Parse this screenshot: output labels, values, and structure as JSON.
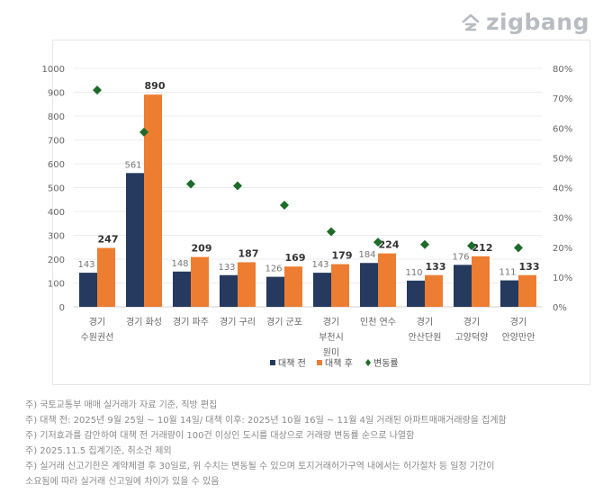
{
  "logo": "zigbang",
  "chart_data": {
    "type": "bar",
    "categories": [
      "경기\n수원권선",
      "경기 화성",
      "경기 파주",
      "경기 구리",
      "경기 군포",
      "경기\n부천시\n원미",
      "인천 연수",
      "경기\n안산단원",
      "경기\n고양덕양",
      "경기\n안양만안"
    ],
    "series": [
      {
        "name": "대책 전",
        "type": "bar",
        "color": "#253a5e",
        "values": [
          143,
          561,
          148,
          133,
          126,
          143,
          184,
          110,
          176,
          111
        ]
      },
      {
        "name": "대책 후",
        "type": "bar",
        "color": "#ed7d31",
        "values": [
          247,
          890,
          209,
          187,
          169,
          179,
          224,
          133,
          212,
          133
        ]
      },
      {
        "name": "변동률",
        "type": "scatter",
        "axis": "right",
        "color": "#1e6b2a",
        "marker": "diamond",
        "values": [
          72.7,
          58.6,
          41.2,
          40.6,
          34.1,
          25.2,
          21.7,
          20.9,
          20.5,
          19.8
        ]
      }
    ],
    "ylim": [
      0,
      1000
    ],
    "yticks": [
      "0",
      "100",
      "200",
      "300",
      "400",
      "500",
      "600",
      "700",
      "800",
      "900",
      "1000"
    ],
    "y2lim": [
      0,
      80
    ],
    "y2ticks": [
      "0%",
      "10%",
      "20%",
      "30%",
      "40%",
      "50%",
      "60%",
      "70%",
      "80%"
    ],
    "grid": true,
    "legend": "bottom"
  },
  "notes": [
    "주) 국토교통부 매매 실거래가 자료 기준, 직방 편집",
    "주) 대책 전: 2025년 9월 25일 ~ 10월 14일/ 대책 이후: 2025년 10월 16일 ~ 11월 4일 거래된 아파트매매거래량을 집계함",
    "주) 기저효과를 감안하여 대책 전 거래량이 100건 이상인 도시를 대상으로 거래량 변동률 순으로 나열함",
    "주) 2025.11.5 집계기준, 취소건 제외",
    "주) 실거래 신고기한은 계약체결 후 30일로, 위 수치는 변동될 수 있으며 토지거래허가구역 내에서는 허가절차 등 일정 기간이",
    "소요됨에 따라 실거래 신고일에 차이가 있을 수 있음"
  ]
}
